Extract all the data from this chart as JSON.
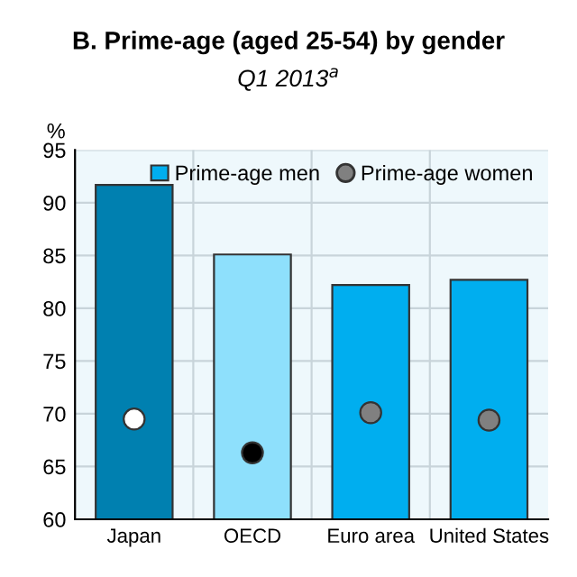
{
  "chart_data": {
    "type": "bar",
    "title": "B. Prime-age (aged 25-54) by gender",
    "subtitle": "Q1 2013$^{a}$",
    "ylabel": "%",
    "categories": [
      "Japan",
      "OECD",
      "Euro area",
      "United States"
    ],
    "series": [
      {
        "name": "Prime-age men",
        "color": "#00aeef",
        "colors": [
          "#0080b0",
          "#8ee0fc",
          "#00aeef",
          "#00aeef"
        ],
        "values": [
          91.7,
          85.1,
          82.2,
          82.7
        ]
      },
      {
        "name": "Prime-age women",
        "type": "scatter",
        "x": [
          "Japan",
          "OECD",
          "Euro area",
          "United States"
        ],
        "color": "#808080",
        "colors": [
          "#ffffff",
          "#000000",
          "#808080",
          "#808080"
        ],
        "values": [
          69.5,
          66.3,
          70.1,
          69.4
        ]
      }
    ],
    "ylim": [
      60,
      95
    ],
    "yticks": [
      60,
      65,
      70,
      75,
      80,
      85,
      90,
      95
    ],
    "grid": true,
    "legend": "top right",
    "marker": "circle"
  }
}
